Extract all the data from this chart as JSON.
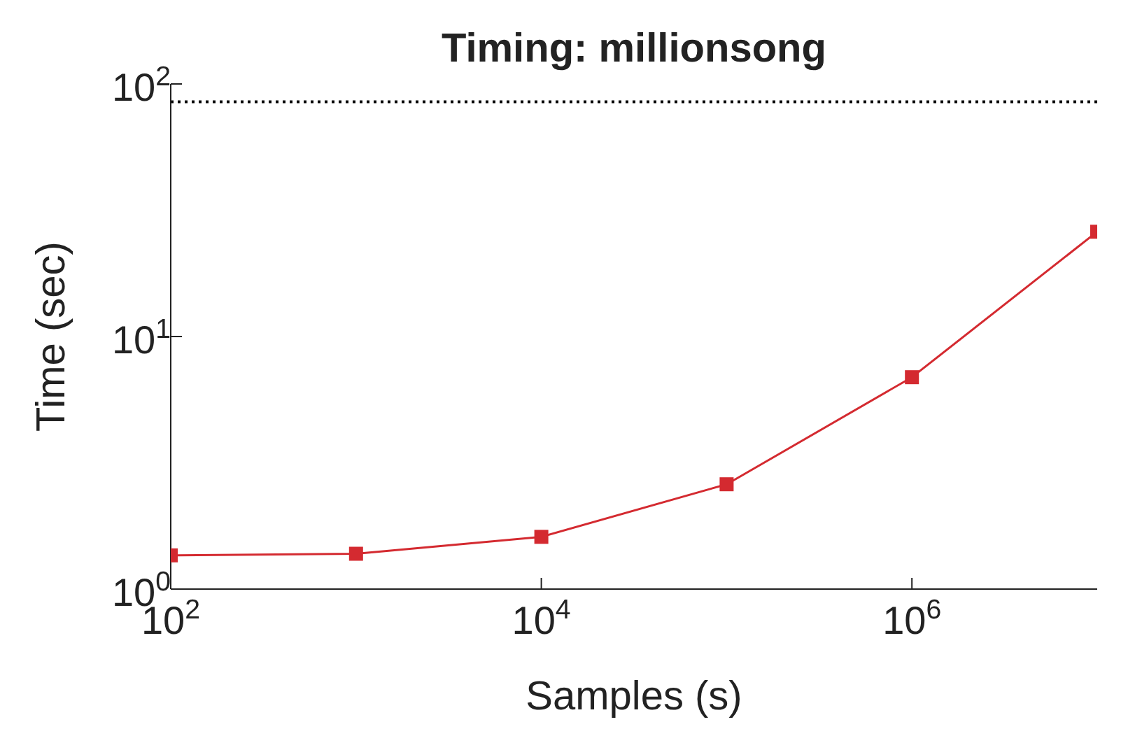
{
  "chart_data": {
    "type": "line",
    "title": "Timing: millionsong",
    "xlabel": "Samples (s)",
    "ylabel": "Time (sec)",
    "x": [
      100,
      1000,
      10000,
      100000,
      1000000,
      10000000
    ],
    "series": [
      {
        "color": "#d42a30",
        "values": [
          1.36,
          1.38,
          1.61,
          2.6,
          6.9,
          26
        ]
      }
    ],
    "log": "xy",
    "xlim": [
      100,
      10000000
    ],
    "ylim": [
      1,
      100
    ],
    "xticks": [
      {
        "value": 100,
        "label": "10$^{2}$"
      },
      {
        "value": 10000,
        "label": "10$^{4}$"
      },
      {
        "value": 1000000,
        "label": "10$^{6}$"
      }
    ],
    "yticks": [
      {
        "value": 1,
        "label": "10$^{0}$"
      },
      {
        "value": 10,
        "label": "10$^{1}$"
      },
      {
        "value": 100,
        "label": "10$^{2}$"
      }
    ],
    "ref_lines": [
      {
        "axis": "y",
        "value": 85,
        "color": "#000000",
        "line_style": "dotted"
      }
    ],
    "marker": "square",
    "line_style": "solid",
    "grid": false,
    "legend": false
  }
}
